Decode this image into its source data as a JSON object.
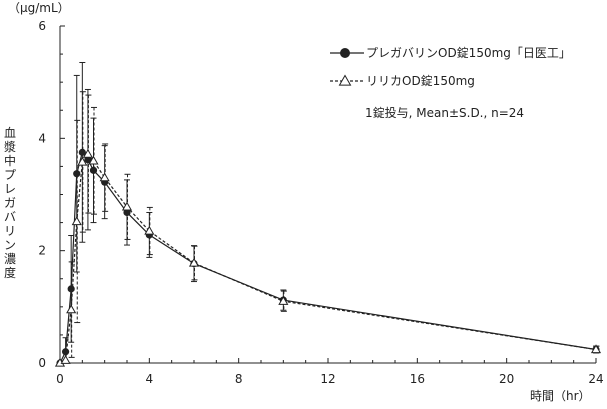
{
  "chart_data": {
    "type": "line",
    "y_unit": "（μg/mL）",
    "ylabel": "血漿中プレガバリン濃度",
    "xlabel": "時間（hr）",
    "x_ticks": [
      0,
      4,
      8,
      12,
      16,
      20,
      24
    ],
    "y_ticks": [
      0,
      2,
      4,
      6
    ],
    "xlim": [
      0,
      24
    ],
    "ylim": [
      0,
      6
    ],
    "grid": false,
    "legend_position": "top-right",
    "note": "1錠投与, Mean±S.D., n=24",
    "x": [
      0,
      0.25,
      0.5,
      0.75,
      1,
      1.25,
      1.5,
      2,
      3,
      4,
      6,
      10,
      24
    ],
    "series": [
      {
        "name": "プレガバリンOD錠150mg「日医工」",
        "marker": "filled-circle",
        "line_style": "solid",
        "color": "#222222",
        "values": [
          0,
          0.2,
          1.32,
          3.37,
          3.75,
          3.62,
          3.43,
          3.22,
          2.68,
          2.28,
          1.77,
          1.12,
          0.24
        ],
        "sd": [
          0,
          0.25,
          0.95,
          1.75,
          1.6,
          1.25,
          0.93,
          0.65,
          0.58,
          0.4,
          0.32,
          0.18,
          0.06
        ]
      },
      {
        "name": "リリカOD錠150mg",
        "marker": "open-triangle",
        "line_style": "dashed",
        "color": "#222222",
        "values": [
          0,
          0.05,
          0.95,
          2.52,
          3.58,
          3.72,
          3.6,
          3.3,
          2.78,
          2.35,
          1.78,
          1.1,
          0.24
        ],
        "sd": [
          0,
          0.15,
          0.85,
          1.8,
          1.25,
          1.05,
          0.95,
          0.6,
          0.58,
          0.42,
          0.3,
          0.18,
          0.06
        ]
      }
    ]
  }
}
